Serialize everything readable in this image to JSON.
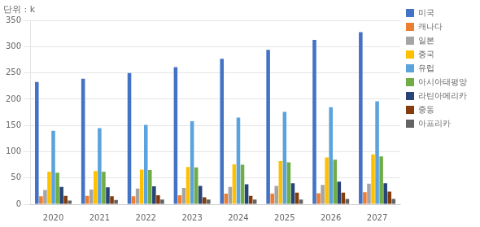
{
  "chart_data": {
    "type": "bar",
    "ylabel": "단위 : k",
    "categories": [
      "2020",
      "2021",
      "2022",
      "2023",
      "2024",
      "2025",
      "2026",
      "2027"
    ],
    "series": [
      {
        "name": "미국",
        "color": "#4472C4",
        "values": [
          233,
          239,
          250,
          261,
          277,
          294,
          313,
          328
        ]
      },
      {
        "name": "캐나다",
        "color": "#ED7D31",
        "values": [
          15,
          16,
          15,
          17,
          20,
          20,
          21,
          23
        ]
      },
      {
        "name": "일본",
        "color": "#A5A5A5",
        "values": [
          27,
          28,
          30,
          31,
          33,
          35,
          37,
          39
        ]
      },
      {
        "name": "중국",
        "color": "#FFC000",
        "values": [
          62,
          63,
          66,
          71,
          76,
          82,
          89,
          95
        ]
      },
      {
        "name": "유럽",
        "color": "#5BA3DC",
        "values": [
          140,
          145,
          151,
          158,
          165,
          176,
          185,
          196
        ]
      },
      {
        "name": "아시아태평양",
        "color": "#70AD47",
        "values": [
          60,
          62,
          65,
          70,
          75,
          80,
          85,
          91
        ]
      },
      {
        "name": "라틴아메리카",
        "color": "#264478",
        "values": [
          33,
          32,
          34,
          35,
          38,
          40,
          43,
          40
        ]
      },
      {
        "name": "중동",
        "color": "#843C0C",
        "values": [
          16,
          15,
          17,
          13,
          16,
          22,
          22,
          24
        ]
      },
      {
        "name": "아프리카",
        "color": "#636363",
        "values": [
          7,
          8,
          9,
          9,
          9,
          9,
          10,
          10
        ]
      }
    ],
    "ylim": [
      0,
      350
    ],
    "yticks": [
      0,
      50,
      100,
      150,
      200,
      250,
      300,
      350
    ],
    "grid": true,
    "legend": "right"
  }
}
